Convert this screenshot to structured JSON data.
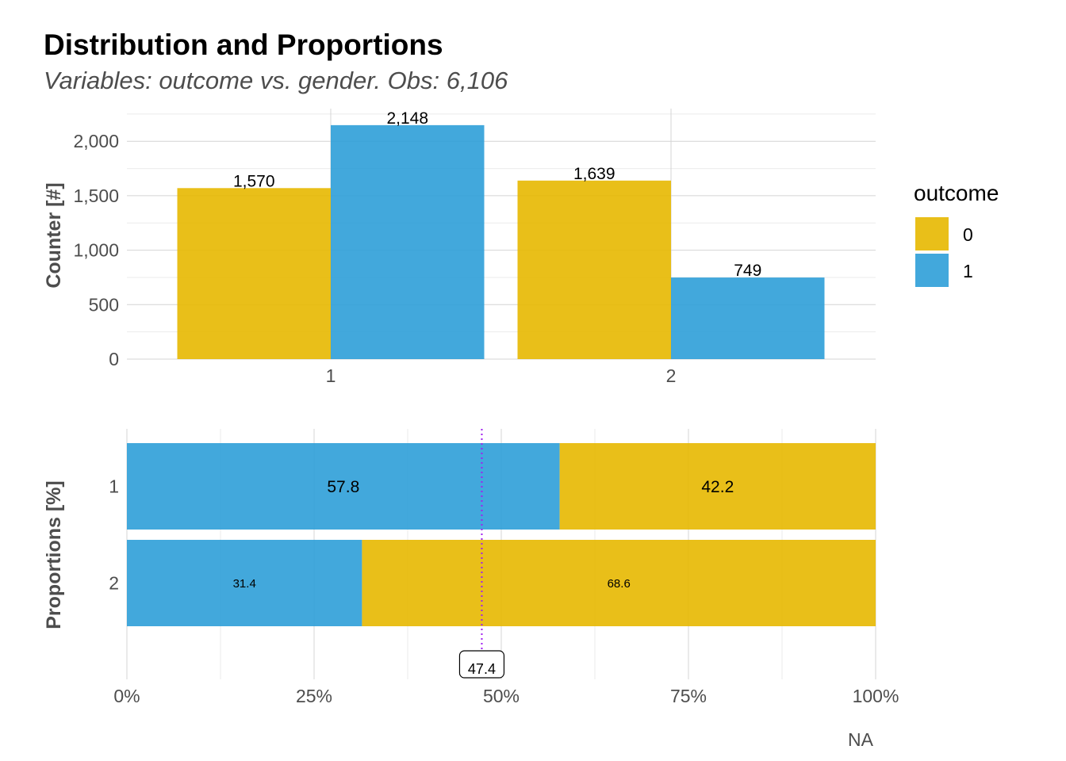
{
  "title": "Distribution and Proportions",
  "subtitle": "Variables: outcome vs. gender. Obs: 6,106",
  "colors": {
    "outcome_0": "#E7B800",
    "outcome_1": "#2E9FD8",
    "mean_line": "#A020F0"
  },
  "legend": {
    "title": "outcome",
    "entries": [
      "0",
      "1"
    ],
    "placement": "right"
  },
  "chart_data": [
    {
      "type": "bar",
      "panel": "distribution",
      "categories": [
        "1",
        "2"
      ],
      "series": [
        {
          "name": "0",
          "values": [
            1570,
            1639
          ],
          "labels": [
            "1,570",
            "1,639"
          ]
        },
        {
          "name": "1",
          "values": [
            2148,
            749
          ],
          "labels": [
            "2,148",
            "749"
          ]
        }
      ],
      "ylabel": "Counter [#]",
      "ylim": [
        0,
        2300
      ],
      "yticks": [
        0,
        500,
        1000,
        1500,
        2000
      ],
      "ytick_labels": [
        "0",
        "500",
        "1,000",
        "1,500",
        "2,000"
      ],
      "grid": true
    },
    {
      "type": "bar",
      "panel": "proportions",
      "orientation": "horizontal",
      "stacked": true,
      "categories": [
        "1",
        "2"
      ],
      "series": [
        {
          "name": "1",
          "values": [
            57.8,
            31.4
          ],
          "labels": [
            "57.8",
            "31.4"
          ]
        },
        {
          "name": "0",
          "values": [
            42.2,
            68.6
          ],
          "labels": [
            "42.2",
            "68.6"
          ]
        }
      ],
      "ylabel": "Proportions [%]",
      "xlabel": "NA",
      "xlim": [
        0,
        100
      ],
      "xticks": [
        0,
        25,
        50,
        75,
        100
      ],
      "xtick_labels": [
        "0%",
        "25%",
        "50%",
        "75%",
        "100%"
      ],
      "reference_line": {
        "value": 47.4,
        "label": "47.4"
      },
      "grid": true
    }
  ]
}
